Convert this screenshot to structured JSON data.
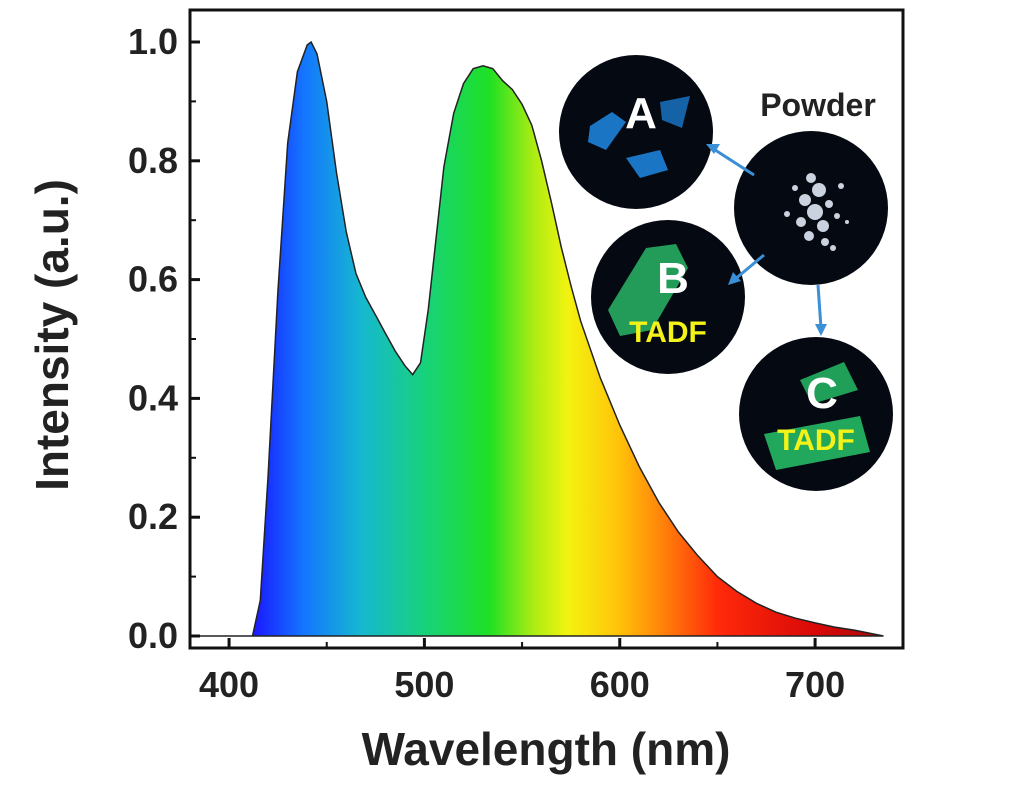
{
  "chart_data": {
    "type": "area",
    "xlabel": "Wavelength (nm)",
    "ylabel": "Intensity (a.u.)",
    "xlim": [
      380,
      745
    ],
    "ylim": [
      0,
      1.0
    ],
    "x_ticks": [
      400,
      500,
      600,
      700
    ],
    "y_ticks": [
      "0.0",
      "0.2",
      "0.4",
      "0.6",
      "0.8",
      "1.0"
    ],
    "y_tick_values": [
      0.0,
      0.2,
      0.4,
      0.6,
      0.8,
      1.0
    ],
    "fill": "visible-spectrum gradient",
    "series": [
      {
        "x": [
          380,
          412,
          416,
          420,
          425,
          430,
          435,
          440,
          442,
          445,
          450,
          455,
          460,
          465,
          470,
          475,
          480,
          485,
          490,
          494,
          498,
          502,
          506,
          510,
          515,
          520,
          525,
          530,
          535,
          540,
          545,
          550,
          555,
          560,
          565,
          570,
          575,
          580,
          590,
          600,
          610,
          620,
          630,
          640,
          650,
          660,
          670,
          680,
          690,
          700,
          710,
          720,
          735
        ],
        "y": [
          0.0,
          0.0,
          0.06,
          0.27,
          0.58,
          0.83,
          0.95,
          0.995,
          1.0,
          0.98,
          0.9,
          0.78,
          0.68,
          0.61,
          0.57,
          0.54,
          0.51,
          0.48,
          0.455,
          0.44,
          0.46,
          0.55,
          0.67,
          0.79,
          0.88,
          0.93,
          0.955,
          0.96,
          0.955,
          0.935,
          0.92,
          0.895,
          0.86,
          0.8,
          0.73,
          0.655,
          0.59,
          0.53,
          0.435,
          0.355,
          0.285,
          0.225,
          0.175,
          0.135,
          0.1,
          0.075,
          0.055,
          0.04,
          0.03,
          0.022,
          0.015,
          0.01,
          0.0
        ]
      }
    ]
  },
  "insets": {
    "a": {
      "letter": "A",
      "color": "#1e88e5"
    },
    "b": {
      "letter": "B",
      "tag": "TADF",
      "color": "#2ecc71"
    },
    "c": {
      "letter": "C",
      "tag": "TADF",
      "color": "#27c46a"
    },
    "powder": {
      "label": "Powder",
      "color": "#dfe8f5"
    },
    "arrow_color": "#3a8fd6"
  }
}
